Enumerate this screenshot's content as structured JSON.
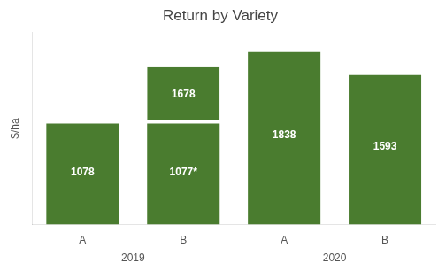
{
  "chart_data": {
    "type": "bar",
    "title": "Return by Variety",
    "ylabel": "$/ha",
    "categories": [
      "A",
      "B",
      "A",
      "B"
    ],
    "x_groups": [
      "2019",
      "2019",
      "2020",
      "2020"
    ],
    "series": [
      {
        "color": "#4a7c2f",
        "values": [
          1078,
          1077,
          1838,
          1593
        ],
        "value_labels": [
          "1078",
          "1077*",
          "1838",
          "1593"
        ]
      },
      {
        "color": "#4a7c2f",
        "values": [
          null,
          1678,
          null,
          null
        ]
      }
    ],
    "ylim": [
      0,
      2050
    ],
    "grid": false,
    "data_labels": true,
    "tick_labels": "x"
  }
}
